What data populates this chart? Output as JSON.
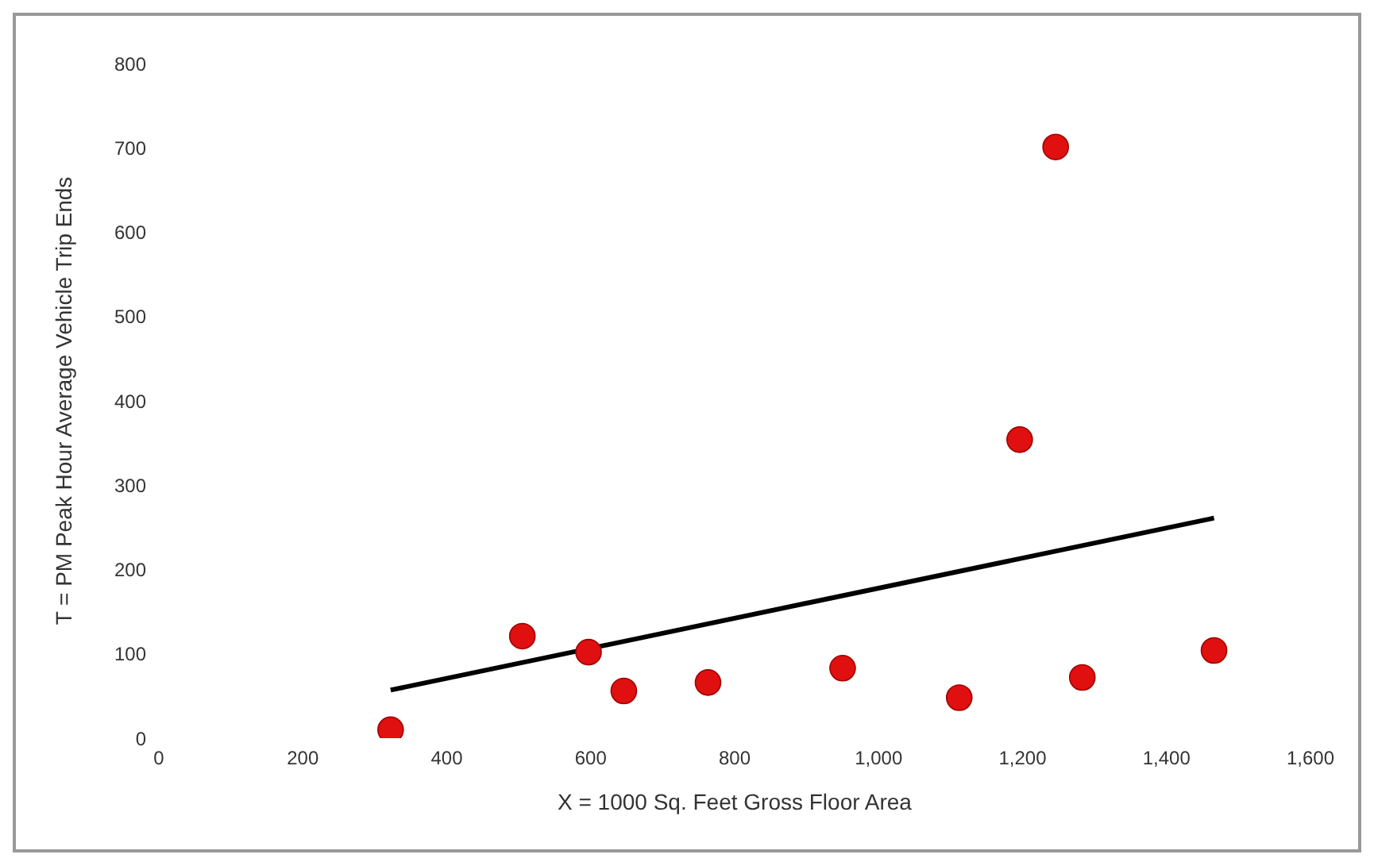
{
  "chart_data": {
    "type": "scatter",
    "xlabel": "X = 1000 Sq. Feet Gross Floor Area",
    "ylabel": "T = PM Peak Hour Average Vehicle Trip Ends",
    "xlim": [
      0,
      1600
    ],
    "xticks": [
      0,
      {
        "value": 200,
        "label": "200"
      },
      {
        "value": 400,
        "label": "400"
      },
      {
        "value": 600,
        "label": "600"
      },
      {
        "value": 800,
        "label": "800"
      },
      {
        "value": 1000,
        "label": "1,000"
      },
      {
        "value": 1200,
        "label": "1,200"
      },
      {
        "value": 1400,
        "label": "1,400"
      },
      {
        "value": 1600,
        "label": "1,600"
      }
    ],
    "ylim": [
      0,
      800
    ],
    "yticks": [
      0,
      100,
      200,
      300,
      400,
      500,
      600,
      700,
      800
    ],
    "grid": false,
    "legend": false,
    "marker": "circle",
    "series": [
      {
        "color": "#e01010",
        "x": [
          322,
          505,
          597,
          646,
          763,
          950,
          1112,
          1196,
          1246,
          1283,
          1466
        ],
        "values": [
          10,
          121,
          102,
          56,
          66,
          83,
          48,
          354,
          701,
          72,
          104
        ]
      },
      {
        "type": "line",
        "color": "#000000",
        "marker": "none",
        "line_style": "solid",
        "x": [
          322,
          1466
        ],
        "values": [
          57,
          261
        ]
      }
    ]
  }
}
